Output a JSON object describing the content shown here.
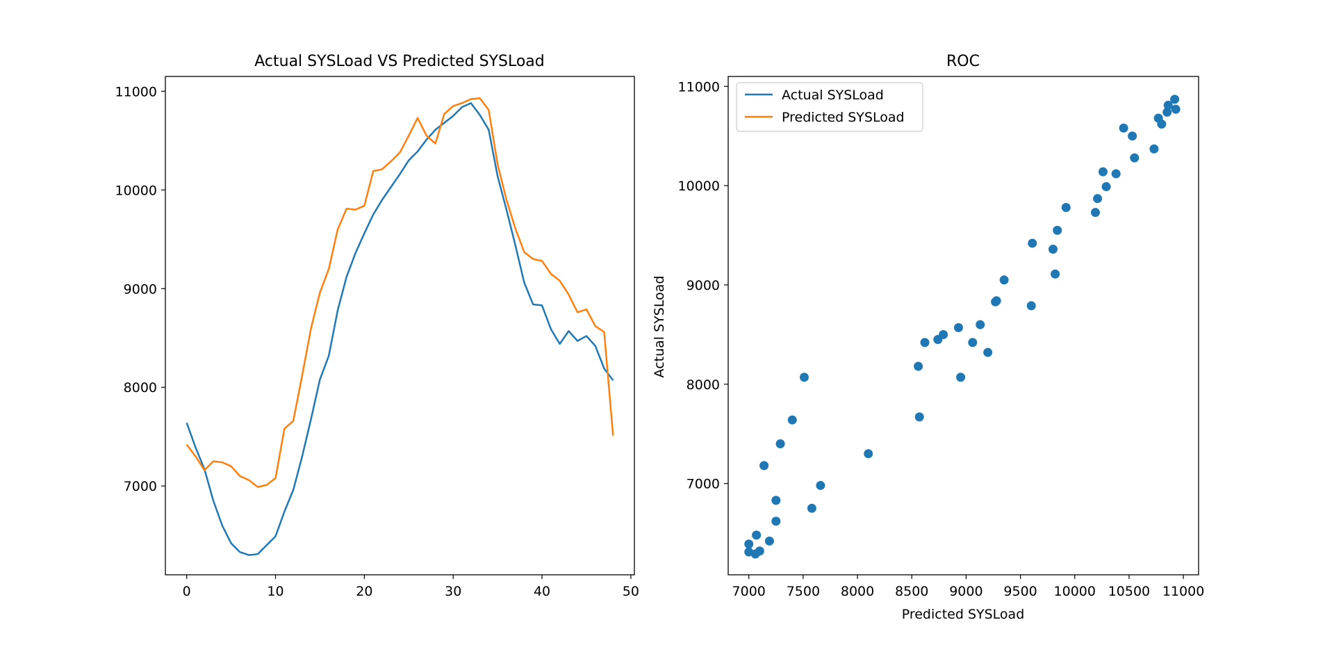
{
  "colors": {
    "actual": "#1f77b4",
    "predicted": "#ff7f0e",
    "axes": "#000000",
    "background": "#ffffff"
  },
  "chart_data": [
    {
      "type": "line",
      "title": "Actual SYSLoad VS Predicted SYSLoad",
      "xlabel": "",
      "ylabel": "",
      "xlim": [
        -2.4,
        50.4
      ],
      "ylim": [
        6100,
        11150
      ],
      "xticks": [
        0,
        10,
        20,
        30,
        40,
        50
      ],
      "yticks": [
        7000,
        8000,
        9000,
        10000,
        11000
      ],
      "grid": false,
      "legend": false,
      "x": [
        0,
        1,
        2,
        3,
        4,
        5,
        6,
        7,
        8,
        9,
        10,
        11,
        12,
        13,
        14,
        15,
        16,
        17,
        18,
        19,
        20,
        21,
        22,
        23,
        24,
        25,
        26,
        27,
        28,
        29,
        30,
        31,
        32,
        33,
        34,
        35,
        36,
        37,
        38,
        39,
        40,
        41,
        42,
        43,
        44,
        45,
        46,
        47,
        48
      ],
      "series": [
        {
          "key": "actual",
          "color": "#1f77b4",
          "values": [
            7640,
            7390,
            7170,
            6850,
            6600,
            6420,
            6330,
            6300,
            6310,
            6400,
            6490,
            6740,
            6960,
            7300,
            7680,
            8080,
            8320,
            8780,
            9120,
            9360,
            9560,
            9750,
            9900,
            10030,
            10160,
            10300,
            10390,
            10510,
            10610,
            10680,
            10750,
            10840,
            10880,
            10760,
            10610,
            10140,
            9800,
            9440,
            9060,
            8840,
            8830,
            8590,
            8440,
            8570,
            8470,
            8520,
            8420,
            8190,
            8070
          ]
        },
        {
          "key": "predicted",
          "color": "#ff7f0e",
          "values": [
            7420,
            7300,
            7160,
            7250,
            7240,
            7200,
            7100,
            7060,
            6990,
            7010,
            7080,
            7580,
            7660,
            8120,
            8600,
            8960,
            9200,
            9600,
            9810,
            9800,
            9840,
            10190,
            10210,
            10290,
            10380,
            10550,
            10730,
            10550,
            10470,
            10770,
            10850,
            10880,
            10920,
            10930,
            10810,
            10260,
            9900,
            9610,
            9370,
            9300,
            9280,
            9150,
            9080,
            8940,
            8760,
            8790,
            8620,
            8560,
            7510
          ]
        }
      ]
    },
    {
      "type": "scatter",
      "title": "ROC",
      "xlabel": "Predicted SYSLoad",
      "ylabel": "Actual SYSLoad",
      "xlim": [
        6810,
        11140
      ],
      "ylim": [
        6080,
        11100
      ],
      "xticks": [
        7000,
        7500,
        8000,
        8500,
        9000,
        9500,
        10000,
        10500,
        11000
      ],
      "yticks": [
        7000,
        8000,
        9000,
        10000,
        11000
      ],
      "grid": false,
      "legend_position": "upper-left",
      "legend": [
        {
          "label": "Actual SYSLoad",
          "color": "#1f77b4"
        },
        {
          "label": "Predicted SYSLoad",
          "color": "#ff7f0e"
        }
      ],
      "points": [
        [
          7000,
          6310
        ],
        [
          7000,
          6390
        ],
        [
          7060,
          6290
        ],
        [
          7070,
          6480
        ],
        [
          7100,
          6320
        ],
        [
          7190,
          6420
        ],
        [
          7250,
          6620
        ],
        [
          7250,
          6830
        ],
        [
          7140,
          7180
        ],
        [
          7290,
          7400
        ],
        [
          7400,
          7640
        ],
        [
          7510,
          8070
        ],
        [
          7580,
          6750
        ],
        [
          7660,
          6980
        ],
        [
          8100,
          7300
        ],
        [
          8560,
          8180
        ],
        [
          8570,
          7670
        ],
        [
          8620,
          8420
        ],
        [
          8740,
          8450
        ],
        [
          8790,
          8500
        ],
        [
          8930,
          8570
        ],
        [
          8950,
          8070
        ],
        [
          9060,
          8420
        ],
        [
          9130,
          8600
        ],
        [
          9200,
          8320
        ],
        [
          9270,
          8830
        ],
        [
          9280,
          8840
        ],
        [
          9350,
          9050
        ],
        [
          9600,
          8790
        ],
        [
          9610,
          9420
        ],
        [
          9800,
          9360
        ],
        [
          9820,
          9110
        ],
        [
          9840,
          9550
        ],
        [
          9920,
          9780
        ],
        [
          10190,
          9730
        ],
        [
          10210,
          9870
        ],
        [
          10260,
          10140
        ],
        [
          10290,
          9990
        ],
        [
          10380,
          10120
        ],
        [
          10450,
          10580
        ],
        [
          10530,
          10500
        ],
        [
          10550,
          10280
        ],
        [
          10730,
          10370
        ],
        [
          10770,
          10680
        ],
        [
          10800,
          10620
        ],
        [
          10850,
          10740
        ],
        [
          10860,
          10810
        ],
        [
          10920,
          10870
        ],
        [
          10930,
          10770
        ]
      ]
    }
  ]
}
